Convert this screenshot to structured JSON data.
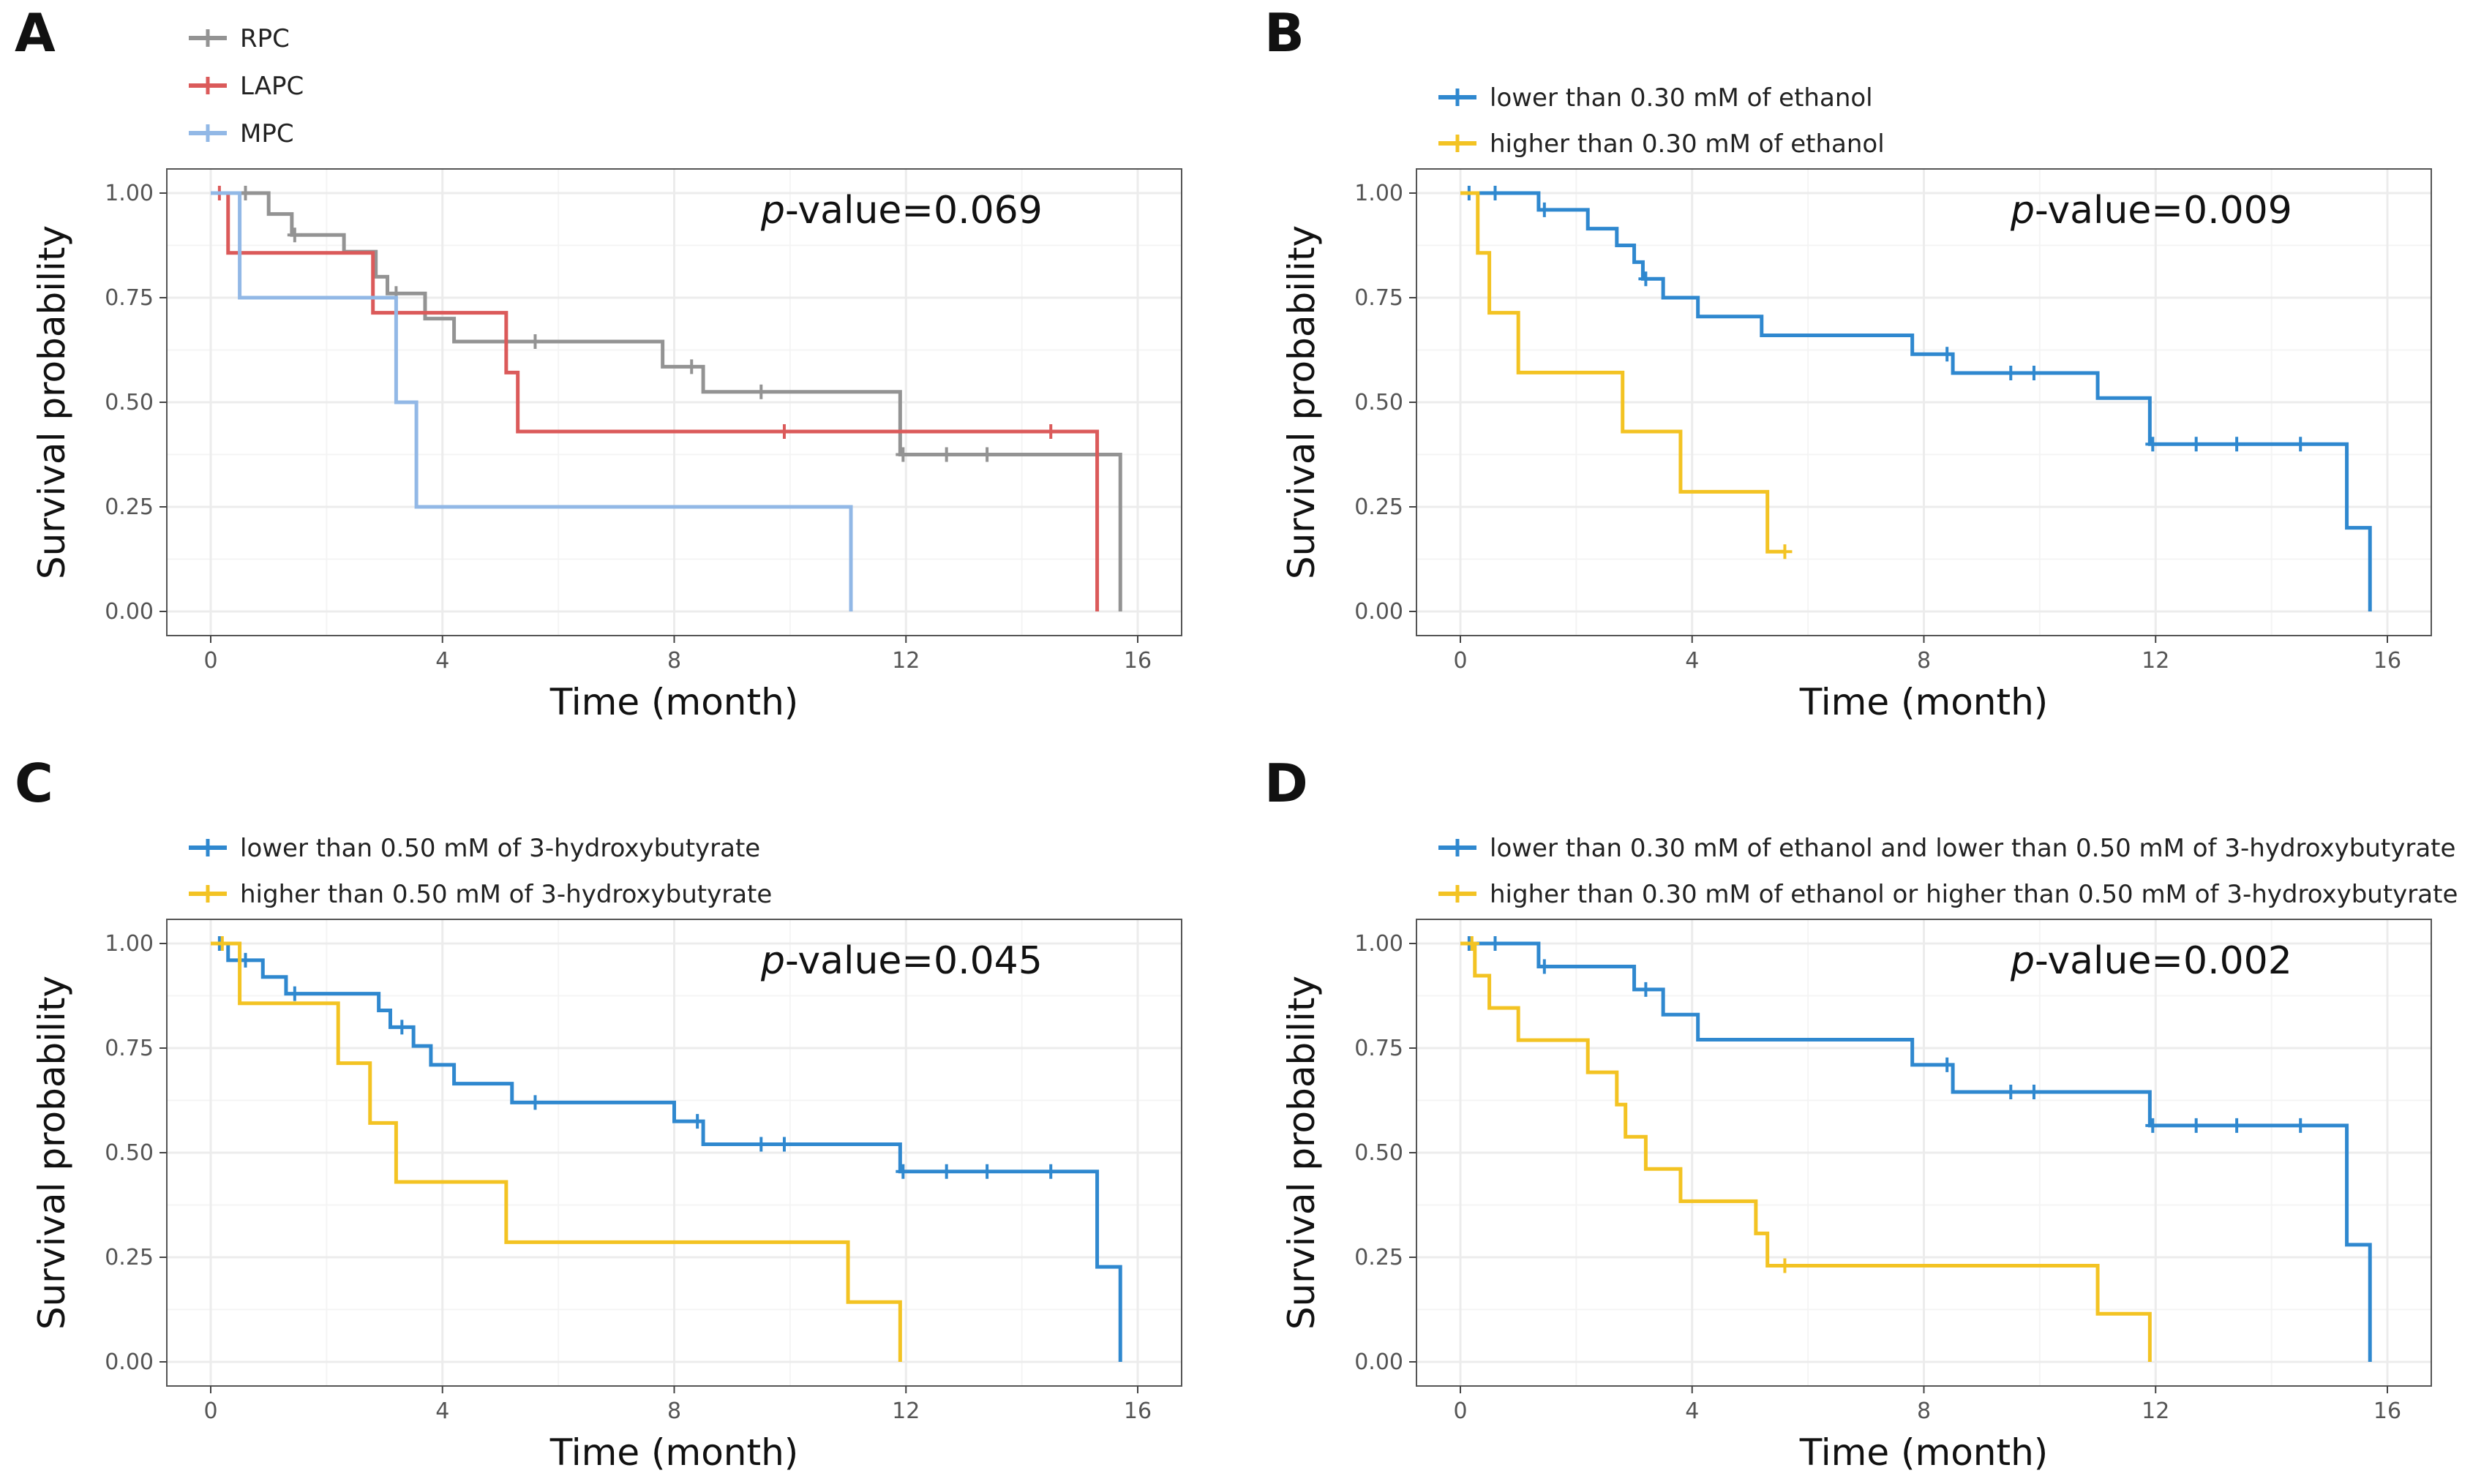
{
  "figure": {
    "panels": [
      "A",
      "B",
      "C",
      "D"
    ]
  },
  "colors": {
    "rpc": "#939393",
    "lapc": "#DB5A5A",
    "mpc": "#92B8E6",
    "blue": "#2F88CF",
    "yellow": "#F3C323",
    "grid": "#ECECEC",
    "border": "#555555"
  },
  "chart_data": [
    {
      "panel": "A",
      "type": "line",
      "subtype": "kaplan-meier",
      "xlabel": "Time (month)",
      "ylabel": "Survival probability",
      "xlim": [
        0,
        16
      ],
      "ylim": [
        0,
        1
      ],
      "x_ticks": [
        "0",
        "4",
        "8",
        "12",
        "16"
      ],
      "y_ticks": [
        "0.00",
        "0.25",
        "0.50",
        "0.75",
        "1.00"
      ],
      "p_prefix": "p",
      "p_suffix": "-value=0.069",
      "legend_position": "top-left",
      "series": [
        {
          "name": "RPC",
          "color": "#939393",
          "steps": [
            [
              0,
              1.0
            ],
            [
              1.0,
              0.95
            ],
            [
              1.4,
              0.9
            ],
            [
              2.3,
              0.86
            ],
            [
              2.85,
              0.8
            ],
            [
              3.05,
              0.76
            ],
            [
              3.7,
              0.7
            ],
            [
              4.2,
              0.645
            ],
            [
              7.8,
              0.585
            ],
            [
              8.5,
              0.525
            ],
            [
              11.9,
              0.375
            ],
            [
              15.7,
              0.0
            ]
          ],
          "end": 15.7,
          "censored": [
            [
              0.6,
              1.0
            ],
            [
              1.45,
              0.9
            ],
            [
              3.2,
              0.76
            ],
            [
              5.6,
              0.645
            ],
            [
              8.3,
              0.585
            ],
            [
              9.5,
              0.525
            ],
            [
              11.95,
              0.375
            ],
            [
              12.7,
              0.375
            ],
            [
              13.4,
              0.375
            ]
          ]
        },
        {
          "name": "LAPC",
          "color": "#DB5A5A",
          "steps": [
            [
              0,
              1.0
            ],
            [
              0.3,
              0.857
            ],
            [
              2.8,
              0.714
            ],
            [
              5.1,
              0.571
            ],
            [
              5.3,
              0.43
            ],
            [
              15.3,
              0.0
            ]
          ],
          "end": 15.3,
          "censored": [
            [
              0.15,
              1.0
            ],
            [
              9.9,
              0.43
            ],
            [
              14.5,
              0.43
            ]
          ]
        },
        {
          "name": "MPC",
          "color": "#92B8E6",
          "steps": [
            [
              0,
              1.0
            ],
            [
              0.5,
              0.75
            ],
            [
              3.2,
              0.5
            ],
            [
              3.55,
              0.25
            ],
            [
              11.05,
              0.0
            ]
          ],
          "end": 11.05,
          "censored": []
        }
      ]
    },
    {
      "panel": "B",
      "type": "line",
      "subtype": "kaplan-meier",
      "xlabel": "Time (month)",
      "ylabel": "Survival probability",
      "xlim": [
        0,
        16
      ],
      "ylim": [
        0,
        1
      ],
      "x_ticks": [
        "0",
        "4",
        "8",
        "12",
        "16"
      ],
      "y_ticks": [
        "0.00",
        "0.25",
        "0.50",
        "0.75",
        "1.00"
      ],
      "p_prefix": "p",
      "p_suffix": "-value=0.009",
      "legend_position": "top-left",
      "series": [
        {
          "name": "lower than 0.30 mM of ethanol",
          "color": "#2F88CF",
          "steps": [
            [
              0,
              1.0
            ],
            [
              1.35,
              0.96
            ],
            [
              2.2,
              0.915
            ],
            [
              2.7,
              0.875
            ],
            [
              3.0,
              0.835
            ],
            [
              3.15,
              0.795
            ],
            [
              3.5,
              0.75
            ],
            [
              4.1,
              0.705
            ],
            [
              5.2,
              0.66
            ],
            [
              7.8,
              0.615
            ],
            [
              8.5,
              0.57
            ],
            [
              11.0,
              0.51
            ],
            [
              11.9,
              0.4
            ],
            [
              15.3,
              0.2
            ],
            [
              15.7,
              0.0
            ]
          ],
          "end": 15.7,
          "censored": [
            [
              0.15,
              1.0
            ],
            [
              0.6,
              1.0
            ],
            [
              1.45,
              0.96
            ],
            [
              3.2,
              0.795
            ],
            [
              8.4,
              0.615
            ],
            [
              9.5,
              0.57
            ],
            [
              9.9,
              0.57
            ],
            [
              11.95,
              0.4
            ],
            [
              12.7,
              0.4
            ],
            [
              13.4,
              0.4
            ],
            [
              14.5,
              0.4
            ]
          ]
        },
        {
          "name": "higher than 0.30 mM of ethanol",
          "color": "#F3C323",
          "steps": [
            [
              0,
              1.0
            ],
            [
              0.3,
              0.857
            ],
            [
              0.5,
              0.714
            ],
            [
              1.0,
              0.571
            ],
            [
              2.8,
              0.43
            ],
            [
              3.8,
              0.286
            ],
            [
              5.3,
              0.143
            ]
          ],
          "end": 5.6,
          "censored": [
            [
              5.6,
              0.143
            ]
          ]
        }
      ]
    },
    {
      "panel": "C",
      "type": "line",
      "subtype": "kaplan-meier",
      "xlabel": "Time (month)",
      "ylabel": "Survival probability",
      "xlim": [
        0,
        16
      ],
      "ylim": [
        0,
        1
      ],
      "x_ticks": [
        "0",
        "4",
        "8",
        "12",
        "16"
      ],
      "y_ticks": [
        "0.00",
        "0.25",
        "0.50",
        "0.75",
        "1.00"
      ],
      "p_prefix": "p",
      "p_suffix": "-value=0.045",
      "legend_position": "top-left",
      "series": [
        {
          "name": "lower than 0.50 mM of 3-hydroxybutyrate",
          "color": "#2F88CF",
          "steps": [
            [
              0,
              1.0
            ],
            [
              0.3,
              0.96
            ],
            [
              0.9,
              0.92
            ],
            [
              1.3,
              0.88
            ],
            [
              2.9,
              0.84
            ],
            [
              3.1,
              0.8
            ],
            [
              3.5,
              0.755
            ],
            [
              3.8,
              0.71
            ],
            [
              4.2,
              0.665
            ],
            [
              5.2,
              0.62
            ],
            [
              8.0,
              0.575
            ],
            [
              8.5,
              0.52
            ],
            [
              11.9,
              0.455
            ],
            [
              15.3,
              0.227
            ],
            [
              15.7,
              0.0
            ]
          ],
          "end": 15.7,
          "censored": [
            [
              0.15,
              1.0
            ],
            [
              0.6,
              0.96
            ],
            [
              1.45,
              0.88
            ],
            [
              3.3,
              0.8
            ],
            [
              5.6,
              0.62
            ],
            [
              8.4,
              0.575
            ],
            [
              9.5,
              0.52
            ],
            [
              9.9,
              0.52
            ],
            [
              11.95,
              0.455
            ],
            [
              12.7,
              0.455
            ],
            [
              13.4,
              0.455
            ],
            [
              14.5,
              0.455
            ]
          ]
        },
        {
          "name": "higher than 0.50 mM of 3-hydroxybutyrate",
          "color": "#F3C323",
          "steps": [
            [
              0,
              1.0
            ],
            [
              0.5,
              0.857
            ],
            [
              2.2,
              0.714
            ],
            [
              2.75,
              0.571
            ],
            [
              3.2,
              0.43
            ],
            [
              5.1,
              0.286
            ],
            [
              11.0,
              0.143
            ],
            [
              11.9,
              0.0
            ]
          ],
          "end": 11.9,
          "censored": [
            [
              0.2,
              1.0
            ]
          ]
        }
      ]
    },
    {
      "panel": "D",
      "type": "line",
      "subtype": "kaplan-meier",
      "xlabel": "Time (month)",
      "ylabel": "Survival probability",
      "xlim": [
        0,
        16
      ],
      "ylim": [
        0,
        1
      ],
      "x_ticks": [
        "0",
        "4",
        "8",
        "12",
        "16"
      ],
      "y_ticks": [
        "0.00",
        "0.25",
        "0.50",
        "0.75",
        "1.00"
      ],
      "p_prefix": "p",
      "p_suffix": "-value=0.002",
      "legend_position": "top-left",
      "series": [
        {
          "name": "lower than 0.30 mM of ethanol and lower than 0.50 mM of 3-hydroxybutyrate",
          "color": "#2F88CF",
          "steps": [
            [
              0,
              1.0
            ],
            [
              1.35,
              0.945
            ],
            [
              3.0,
              0.89
            ],
            [
              3.5,
              0.83
            ],
            [
              4.1,
              0.77
            ],
            [
              7.8,
              0.71
            ],
            [
              8.5,
              0.645
            ],
            [
              11.9,
              0.565
            ],
            [
              15.3,
              0.28
            ],
            [
              15.7,
              0.0
            ]
          ],
          "end": 15.7,
          "censored": [
            [
              0.15,
              1.0
            ],
            [
              0.6,
              1.0
            ],
            [
              1.45,
              0.945
            ],
            [
              3.2,
              0.89
            ],
            [
              8.4,
              0.71
            ],
            [
              9.5,
              0.645
            ],
            [
              9.9,
              0.645
            ],
            [
              11.95,
              0.565
            ],
            [
              12.7,
              0.565
            ],
            [
              13.4,
              0.565
            ],
            [
              14.5,
              0.565
            ]
          ]
        },
        {
          "name": "higher than 0.30 mM of ethanol or higher than 0.50 mM of 3-hydroxybutyrate",
          "color": "#F3C323",
          "steps": [
            [
              0,
              1.0
            ],
            [
              0.25,
              0.923
            ],
            [
              0.5,
              0.846
            ],
            [
              1.0,
              0.769
            ],
            [
              2.2,
              0.692
            ],
            [
              2.7,
              0.615
            ],
            [
              2.85,
              0.538
            ],
            [
              3.2,
              0.461
            ],
            [
              3.8,
              0.384
            ],
            [
              5.1,
              0.307
            ],
            [
              5.3,
              0.23
            ],
            [
              11.0,
              0.115
            ],
            [
              11.9,
              0.0
            ]
          ],
          "end": 11.9,
          "censored": [
            [
              0.2,
              1.0
            ],
            [
              5.6,
              0.23
            ]
          ]
        }
      ]
    }
  ]
}
